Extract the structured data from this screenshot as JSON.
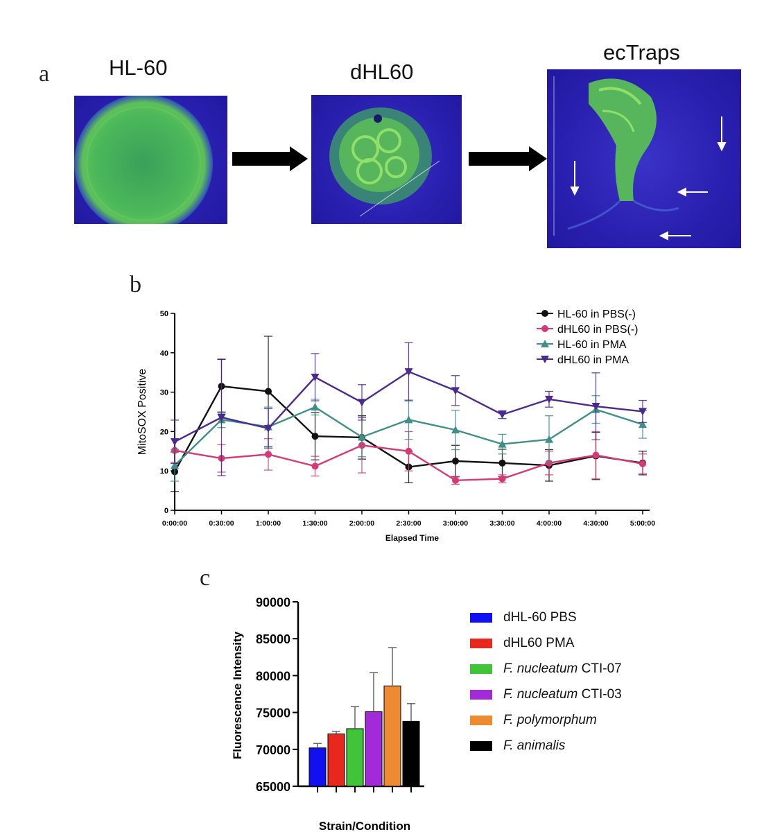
{
  "panel_a": {
    "letter": "a",
    "titles": [
      "HL-60",
      "dHL60",
      "ecTraps"
    ]
  },
  "panel_b_letter": "b",
  "panel_c_letter": "c",
  "colors": {
    "black": "#111111",
    "pink": "#d63a76",
    "teal": "#3f8f88",
    "purple": "#4b2a8f",
    "blue": "#1010f0",
    "red": "#e8281e",
    "green": "#3fc43a",
    "violet": "#a22ad8",
    "orange": "#ee8a32"
  },
  "chart_data": [
    {
      "type": "line",
      "ylabel": "MitoSOX Positive",
      "xlabel": "Elapsed Time",
      "x": [
        "0:00:00",
        "0:30:00",
        "1:00:00",
        "1:30:00",
        "2:00:00",
        "2:30:00",
        "3:00:00",
        "3:30:00",
        "4:00:00",
        "4:30:00",
        "5:00:00"
      ],
      "ylim": [
        0,
        50
      ],
      "yticks": [
        "0",
        "10",
        "20",
        "30",
        "40",
        "50"
      ],
      "grid": false,
      "legend_position": "top-right",
      "series": [
        {
          "name": "HL-60 in PBS(-)",
          "marker": "circle",
          "color": "#111111",
          "values": [
            9.8,
            31.5,
            30.2,
            18.8,
            18.5,
            11.0,
            12.5,
            12.0,
            11.4,
            13.8,
            12.0
          ],
          "errors": [
            5.0,
            6.8,
            14.0,
            6.0,
            5.5,
            4.0,
            4.0,
            3.5,
            4.0,
            6.0,
            3.0
          ]
        },
        {
          "name": "dHL60 in PBS(-)",
          "marker": "circle",
          "color": "#d63a76",
          "values": [
            15.2,
            13.2,
            14.2,
            11.2,
            16.5,
            15.0,
            7.6,
            8.0,
            12.0,
            14.0,
            11.8
          ],
          "errors": [
            3.0,
            3.5,
            4.0,
            2.5,
            7.0,
            5.0,
            1.0,
            1.0,
            3.0,
            6.0,
            2.5
          ]
        },
        {
          "name": "HL-60 in PMA",
          "marker": "triangle-up",
          "color": "#3f8f88",
          "values": [
            11.4,
            23.0,
            21.2,
            26.2,
            18.6,
            23.0,
            20.4,
            16.8,
            18.0,
            25.6,
            21.8
          ],
          "errors": [
            4.0,
            2.0,
            5.0,
            2.0,
            5.0,
            5.0,
            5.0,
            2.5,
            6.0,
            3.5,
            3.5
          ]
        },
        {
          "name": "dHL60 in PMA",
          "marker": "triangle-down",
          "color": "#4b2a8f",
          "values": [
            17.4,
            23.6,
            20.8,
            33.8,
            27.4,
            35.2,
            30.4,
            24.3,
            28.2,
            26.4,
            25.1
          ],
          "errors": [
            5.5,
            14.8,
            5.0,
            6.0,
            4.5,
            7.4,
            3.8,
            1.0,
            2.0,
            8.5,
            2.8
          ]
        }
      ]
    },
    {
      "type": "bar",
      "ylabel": "Fluorescence Intensity",
      "xlabel": "Strain/Condition",
      "ylim": [
        65000,
        90000
      ],
      "yticks": [
        "65000",
        "70000",
        "75000",
        "80000",
        "85000",
        "90000"
      ],
      "legend_position": "right",
      "series": [
        {
          "name_plain": "dHL-60 PBS",
          "name_italic": "",
          "color": "#1010f0",
          "value": 70200,
          "error": 600
        },
        {
          "name_plain": "dHL60 PMA",
          "name_italic": "",
          "color": "#e8281e",
          "value": 72100,
          "error": 350
        },
        {
          "name_italic": "F. nucleatum",
          "name_plain": " CTI-07",
          "color": "#3fc43a",
          "value": 72800,
          "error": 3000
        },
        {
          "name_italic": "F. nucleatum",
          "name_plain": " CTI-03",
          "color": "#a22ad8",
          "value": 75100,
          "error": 5300
        },
        {
          "name_italic": "F. polymorphum",
          "name_plain": "",
          "color": "#ee8a32",
          "value": 78600,
          "error": 5200
        },
        {
          "name_italic": "F. animalis",
          "name_plain": "",
          "color": "#000000",
          "value": 73800,
          "error": 2400
        }
      ]
    }
  ]
}
